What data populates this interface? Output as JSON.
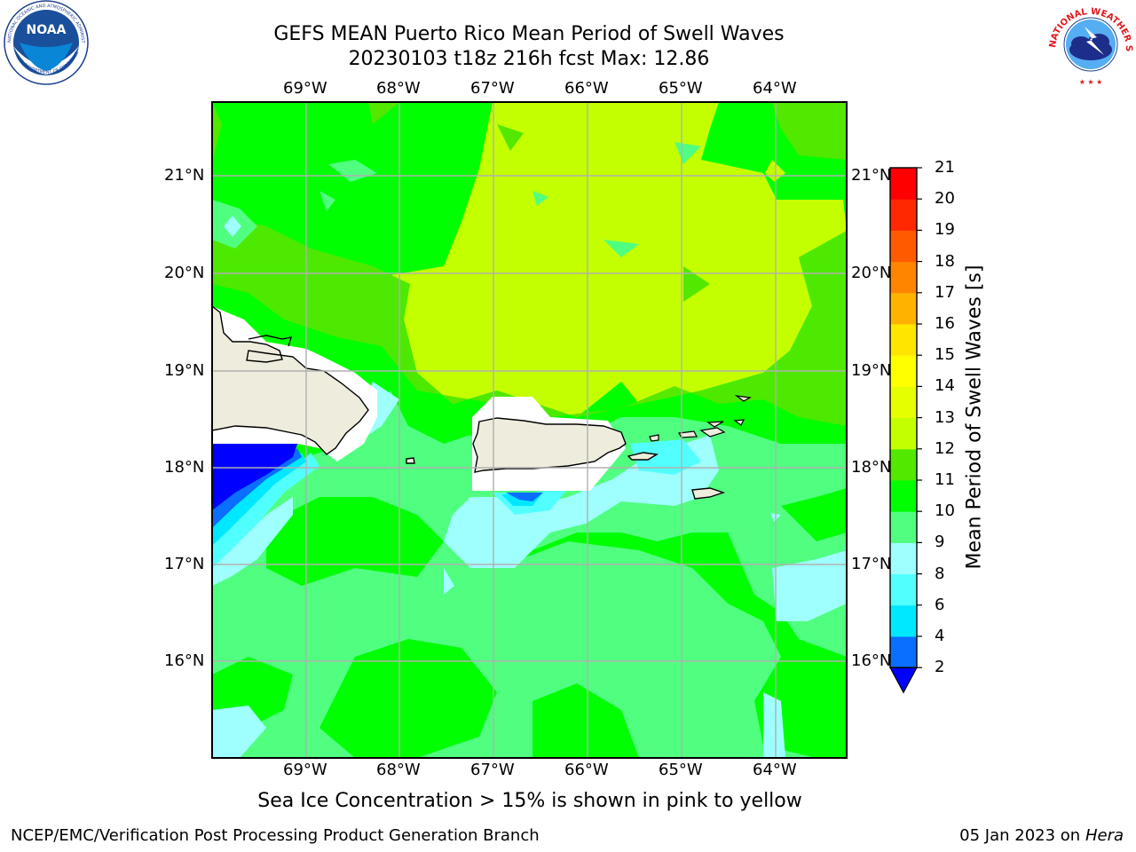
{
  "header": {
    "title_line1": "GEFS MEAN Puerto Rico Mean Period of Swell Waves",
    "title_line2": "20230103 t18z 216h fcst   Max: 12.86"
  },
  "logos": {
    "left_name": "NOAA",
    "right_ring_text": "NATIONAL WEATHER SERVICE",
    "left_ring_text": "NATIONAL OCEANIC AND ATMOSPHERIC ADMINISTRATION",
    "left_bottom_text": "U.S. DEPARTMENT OF COMMERCE"
  },
  "map": {
    "lon_labels": [
      "69°W",
      "68°W",
      "67°W",
      "66°W",
      "65°W",
      "64°W"
    ],
    "lat_labels": [
      "21°N",
      "20°N",
      "19°N",
      "18°N",
      "17°N",
      "16°N"
    ],
    "lon_range": [
      -70.0,
      -63.25
    ],
    "lat_range": [
      15.0,
      21.75
    ],
    "gridlines": true,
    "land_color": "#eeecdc",
    "frame_color": "#000000"
  },
  "colorbar": {
    "title": "Mean Period of Swell Waves [s]",
    "ticks": [
      "2",
      "4",
      "6",
      "8",
      "9",
      "10",
      "11",
      "12",
      "13",
      "14",
      "15",
      "16",
      "17",
      "18",
      "19",
      "20",
      "21"
    ],
    "colors": [
      "#0000ff",
      "#0a6eff",
      "#00e8ff",
      "#52ffff",
      "#9fffff",
      "#50ff80",
      "#00ff00",
      "#52e800",
      "#c4ff00",
      "#e6ff00",
      "#ffff00",
      "#ffe600",
      "#ffb300",
      "#ff8500",
      "#ff5a00",
      "#ff2800",
      "#ff0000"
    ],
    "under_color": "#0000ff"
  },
  "note": "Sea Ice Concentration > 15% is shown in pink to yellow",
  "footer": {
    "left": "NCEP/EMC/Verification Post Processing Product Generation Branch",
    "date": "05 Jan 2023 on ",
    "machine": "Hera"
  }
}
